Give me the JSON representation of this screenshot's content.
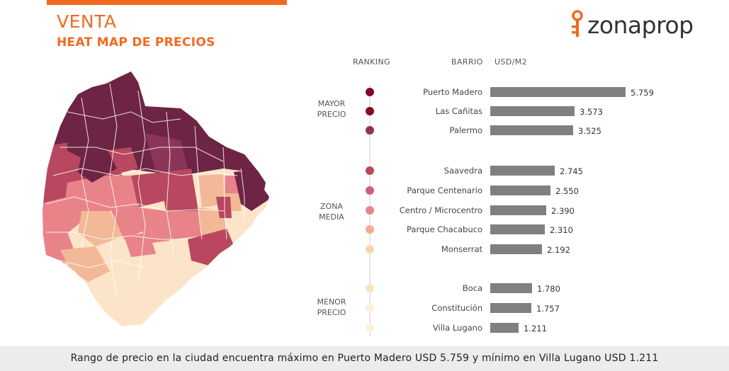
{
  "header": {
    "title": "VENTA",
    "subtitle": "HEAT MAP DE PRECIOS",
    "brand": "zonaprop",
    "accent_color": "#f26a21"
  },
  "columns": {
    "ranking": "RANKING",
    "barrio": "BARRIO",
    "unit": "USD/M2"
  },
  "groups": [
    {
      "line1": "MAYOR",
      "line2": "PRECIO"
    },
    {
      "line1": "ZONA",
      "line2": "MEDIA"
    },
    {
      "line1": "MENOR",
      "line2": "PRECIO"
    }
  ],
  "chart_data": {
    "type": "bar",
    "orientation": "horizontal",
    "categories": [
      "Puerto Madero",
      "Las Cañitas",
      "Palermo",
      "Saavedra",
      "Parque Centenario",
      "Centro / Microcentro",
      "Parque Chacabuco",
      "Monserrat",
      "Boca",
      "Constitución",
      "Villa Lugano"
    ],
    "values": [
      5759,
      3573,
      3525,
      2745,
      2550,
      2390,
      2310,
      2192,
      1780,
      1757,
      1211
    ],
    "value_labels": [
      "5.759",
      "3.573",
      "3.525",
      "2.745",
      "2.550",
      "2.390",
      "2.310",
      "2.192",
      "1.780",
      "1.757",
      "1.211"
    ],
    "group_index": [
      0,
      0,
      0,
      1,
      1,
      1,
      1,
      1,
      2,
      2,
      2
    ],
    "rank_colors": [
      "#7f0a2c",
      "#8a0c1c",
      "#8b3558",
      "#b84a5c",
      "#d06078",
      "#e8838a",
      "#f2ab94",
      "#f8d6b0",
      "#f7e6bc",
      "#fbf1d8",
      "#fbf1d8"
    ],
    "bar_color": "#808080",
    "xlim": [
      0,
      5759
    ]
  },
  "map": {
    "palette": [
      "#6e2444",
      "#b8475f",
      "#e8838a",
      "#f2b897",
      "#fbe4c7"
    ]
  },
  "footer": {
    "text": "Rango de precio en la ciudad encuentra máximo en Puerto Madero USD 5.759 y mínimo en Villa Lugano USD 1.211"
  }
}
